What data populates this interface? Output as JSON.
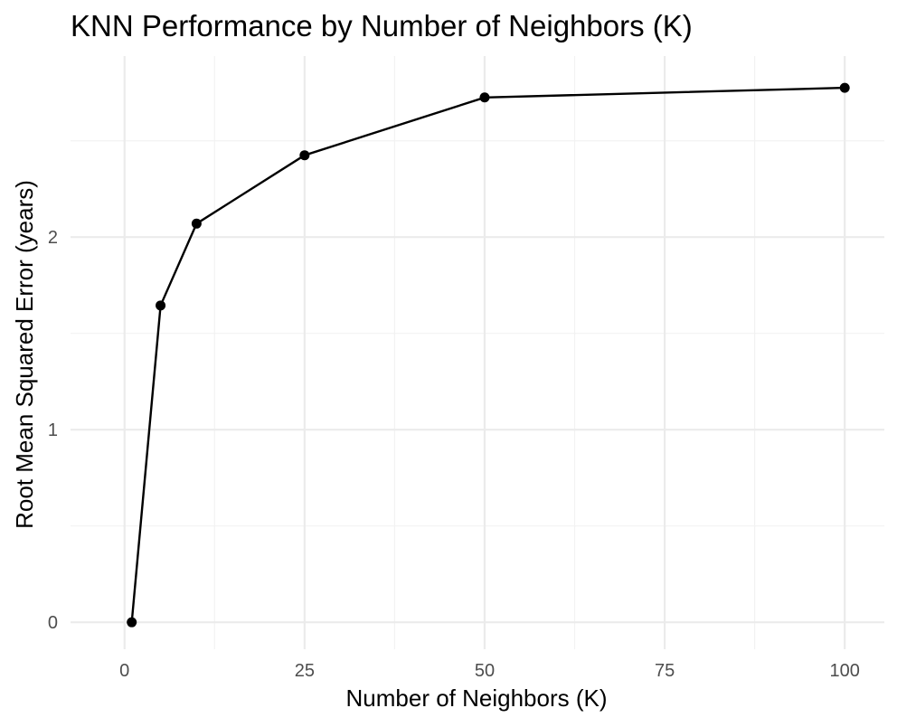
{
  "chart_data": {
    "type": "line",
    "title": "KNN Performance by Number of Neighbors (K)",
    "xlabel": "Number of Neighbors (K)",
    "ylabel": "Root Mean Squared Error (years)",
    "x_ticks": [
      0,
      25,
      50,
      75,
      100
    ],
    "x_tick_labels": [
      "0",
      "25",
      "50",
      "75",
      "100"
    ],
    "y_ticks": [
      0,
      1,
      2
    ],
    "y_tick_labels": [
      "0",
      "1",
      "2"
    ],
    "xlim": [
      -7.5,
      105.5
    ],
    "ylim": [
      -0.14,
      2.94
    ],
    "grid": true,
    "series": [
      {
        "color": "#000000",
        "x": [
          1,
          5,
          10,
          25,
          50,
          100
        ],
        "y": [
          0,
          1.645,
          2.07,
          2.425,
          2.725,
          2.775
        ]
      }
    ]
  }
}
